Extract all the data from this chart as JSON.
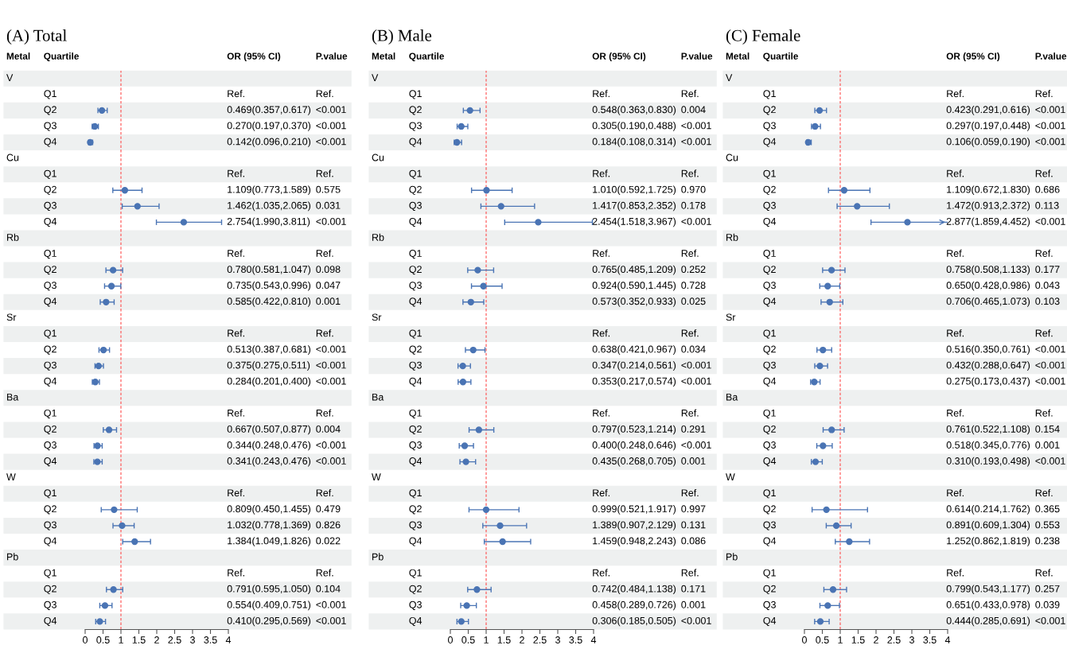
{
  "chart_data": [
    {
      "type": "scatter",
      "orientation": "horizontal",
      "title": "(A) Total",
      "color": "#4a74b4",
      "marker": "circle",
      "grid": false,
      "annotations": [
        "Metal",
        "Quartile",
        "OR (95% CI)",
        "P.value",
        "V",
        "Cu",
        "Rb",
        "Sr",
        "Ba",
        "W",
        "Pb"
      ],
      "categories": [
        null,
        "Q1",
        "Q2",
        "Q3",
        "Q4",
        null,
        "Q1",
        "Q2",
        "Q3",
        "Q4",
        null,
        "Q1",
        "Q2",
        "Q3",
        "Q4",
        null,
        "Q1",
        "Q2",
        "Q3",
        "Q4",
        null,
        "Q1",
        "Q2",
        "Q3",
        "Q4",
        null,
        "Q1",
        "Q2",
        "Q3",
        "Q4",
        null,
        "Q1",
        "Q2",
        "Q3",
        "Q4"
      ],
      "values": [
        null,
        null,
        0.469,
        0.27,
        0.142,
        null,
        null,
        1.109,
        1.462,
        2.754,
        null,
        null,
        0.78,
        0.735,
        0.585,
        null,
        null,
        0.513,
        0.375,
        0.284,
        null,
        null,
        0.667,
        0.344,
        0.341,
        null,
        null,
        0.809,
        1.032,
        1.384,
        null,
        null,
        0.791,
        0.554,
        0.41
      ],
      "errors": [
        null,
        null,
        [
          0.357,
          0.617
        ],
        [
          0.197,
          0.37
        ],
        [
          0.096,
          0.21
        ],
        null,
        null,
        [
          0.773,
          1.589
        ],
        [
          1.035,
          2.065
        ],
        [
          1.99,
          3.811
        ],
        null,
        null,
        [
          0.581,
          1.047
        ],
        [
          0.543,
          0.996
        ],
        [
          0.422,
          0.81
        ],
        null,
        null,
        [
          0.387,
          0.681
        ],
        [
          0.275,
          0.511
        ],
        [
          0.201,
          0.4
        ],
        null,
        null,
        [
          0.507,
          0.877
        ],
        [
          0.248,
          0.476
        ],
        [
          0.243,
          0.476
        ],
        null,
        null,
        [
          0.45,
          1.455
        ],
        [
          0.778,
          1.369
        ],
        [
          1.049,
          1.826
        ],
        null,
        null,
        [
          0.595,
          1.05
        ],
        [
          0.409,
          0.751
        ],
        [
          0.295,
          0.569
        ]
      ],
      "value_labels": [
        null,
        "Ref.",
        "0.469(0.357,0.617)",
        "0.270(0.197,0.370)",
        "0.142(0.096,0.210)",
        null,
        "Ref.",
        "1.109(0.773,1.589)",
        "1.462(1.035,2.065)",
        "2.754(1.990,3.811)",
        null,
        "Ref.",
        "0.780(0.581,1.047)",
        "0.735(0.543,0.996)",
        "0.585(0.422,0.810)",
        null,
        "Ref.",
        "0.513(0.387,0.681)",
        "0.375(0.275,0.511)",
        "0.284(0.201,0.400)",
        null,
        "Ref.",
        "0.667(0.507,0.877)",
        "0.344(0.248,0.476)",
        "0.341(0.243,0.476)",
        null,
        "Ref.",
        "0.809(0.450,1.455)",
        "1.032(0.778,1.369)",
        "1.384(1.049,1.826)",
        null,
        "Ref.",
        "0.791(0.595,1.050)",
        "0.554(0.409,0.751)",
        "0.410(0.295,0.569)"
      ],
      "y2_categories": [
        null,
        "Ref.",
        "<0.001",
        "<0.001",
        "<0.001",
        null,
        "Ref.",
        "0.575",
        "0.031",
        "<0.001",
        null,
        "Ref.",
        "0.098",
        "0.047",
        "0.001",
        null,
        "Ref.",
        "<0.001",
        "<0.001",
        "<0.001",
        null,
        "Ref.",
        "0.004",
        "<0.001",
        "<0.001",
        null,
        "Ref.",
        "0.479",
        "0.826",
        "0.022",
        null,
        "Ref.",
        "0.104",
        "<0.001",
        "<0.001"
      ],
      "xlim": [
        0,
        4
      ],
      "xticks": [
        0,
        0.5,
        1,
        1.5,
        2,
        2.5,
        3,
        3.5,
        4
      ],
      "ref_lines": [
        {
          "axis": "x",
          "value": 1,
          "color": "#ff4d4d",
          "line_style": "dashed"
        }
      ]
    },
    {
      "type": "scatter",
      "orientation": "horizontal",
      "title": "(B) Male",
      "color": "#4a74b4",
      "marker": "circle",
      "grid": false,
      "annotations": [
        "Metal",
        "Quartile",
        "OR (95% CI)",
        "P.value",
        "V",
        "Cu",
        "Rb",
        "Sr",
        "Ba",
        "W",
        "Pb"
      ],
      "categories": [
        null,
        "Q1",
        "Q2",
        "Q3",
        "Q4",
        null,
        "Q1",
        "Q2",
        "Q3",
        "Q4",
        null,
        "Q1",
        "Q2",
        "Q3",
        "Q4",
        null,
        "Q1",
        "Q2",
        "Q3",
        "Q4",
        null,
        "Q1",
        "Q2",
        "Q3",
        "Q4",
        null,
        "Q1",
        "Q2",
        "Q3",
        "Q4",
        null,
        "Q1",
        "Q2",
        "Q3",
        "Q4"
      ],
      "values": [
        null,
        null,
        0.548,
        0.305,
        0.184,
        null,
        null,
        1.01,
        1.417,
        2.454,
        null,
        null,
        0.765,
        0.924,
        0.573,
        null,
        null,
        0.638,
        0.347,
        0.353,
        null,
        null,
        0.797,
        0.4,
        0.435,
        null,
        null,
        0.999,
        1.389,
        1.459,
        null,
        null,
        0.742,
        0.458,
        0.306
      ],
      "errors": [
        null,
        null,
        [
          0.363,
          0.83
        ],
        [
          0.19,
          0.488
        ],
        [
          0.108,
          0.314
        ],
        null,
        null,
        [
          0.592,
          1.725
        ],
        [
          0.853,
          2.352
        ],
        [
          1.518,
          3.967
        ],
        null,
        null,
        [
          0.485,
          1.209
        ],
        [
          0.59,
          1.445
        ],
        [
          0.352,
          0.933
        ],
        null,
        null,
        [
          0.421,
          0.967
        ],
        [
          0.214,
          0.561
        ],
        [
          0.217,
          0.574
        ],
        null,
        null,
        [
          0.523,
          1.214
        ],
        [
          0.248,
          0.646
        ],
        [
          0.268,
          0.705
        ],
        null,
        null,
        [
          0.521,
          1.917
        ],
        [
          0.907,
          2.129
        ],
        [
          0.948,
          2.243
        ],
        null,
        null,
        [
          0.484,
          1.138
        ],
        [
          0.289,
          0.726
        ],
        [
          0.185,
          0.505
        ]
      ],
      "value_labels": [
        null,
        "Ref.",
        "0.548(0.363,0.830)",
        "0.305(0.190,0.488)",
        "0.184(0.108,0.314)",
        null,
        "Ref.",
        "1.010(0.592,1.725)",
        "1.417(0.853,2.352)",
        "2.454(1.518,3.967)",
        null,
        "Ref.",
        "0.765(0.485,1.209)",
        "0.924(0.590,1.445)",
        "0.573(0.352,0.933)",
        null,
        "Ref.",
        "0.638(0.421,0.967)",
        "0.347(0.214,0.561)",
        "0.353(0.217,0.574)",
        null,
        "Ref.",
        "0.797(0.523,1.214)",
        "0.400(0.248,0.646)",
        "0.435(0.268,0.705)",
        null,
        "Ref.",
        "0.999(0.521,1.917)",
        "1.389(0.907,2.129)",
        "1.459(0.948,2.243)",
        null,
        "Ref.",
        "0.742(0.484,1.138)",
        "0.458(0.289,0.726)",
        "0.306(0.185,0.505)"
      ],
      "y2_categories": [
        null,
        "Ref.",
        "0.004",
        "<0.001",
        "<0.001",
        null,
        "Ref.",
        "0.970",
        "0.178",
        "<0.001",
        null,
        "Ref.",
        "0.252",
        "0.728",
        "0.025",
        null,
        "Ref.",
        "0.034",
        "<0.001",
        "<0.001",
        null,
        "Ref.",
        "0.291",
        "<0.001",
        "0.001",
        null,
        "Ref.",
        "0.997",
        "0.131",
        "0.086",
        null,
        "Ref.",
        "0.171",
        "0.001",
        "<0.001"
      ],
      "xlim": [
        0,
        4
      ],
      "xticks": [
        0,
        0.5,
        1,
        1.5,
        2,
        2.5,
        3,
        3.5,
        4
      ],
      "ref_lines": [
        {
          "axis": "x",
          "value": 1,
          "color": "#ff4d4d",
          "line_style": "dashed"
        }
      ]
    },
    {
      "type": "scatter",
      "orientation": "horizontal",
      "title": "(C) Female",
      "color": "#4a74b4",
      "marker": "circle",
      "grid": false,
      "annotations": [
        "Metal",
        "Quartile",
        "OR (95% CI)",
        "P.value",
        "V",
        "Cu",
        "Rb",
        "Sr",
        "Ba",
        "W",
        "Pb"
      ],
      "categories": [
        null,
        "Q1",
        "Q2",
        "Q3",
        "Q4",
        null,
        "Q1",
        "Q2",
        "Q3",
        "Q4",
        null,
        "Q1",
        "Q2",
        "Q3",
        "Q4",
        null,
        "Q1",
        "Q2",
        "Q3",
        "Q4",
        null,
        "Q1",
        "Q2",
        "Q3",
        "Q4",
        null,
        "Q1",
        "Q2",
        "Q3",
        "Q4",
        null,
        "Q1",
        "Q2",
        "Q3",
        "Q4"
      ],
      "values": [
        null,
        null,
        0.423,
        0.297,
        0.106,
        null,
        null,
        1.109,
        1.472,
        2.877,
        null,
        null,
        0.758,
        0.65,
        0.706,
        null,
        null,
        0.516,
        0.432,
        0.275,
        null,
        null,
        0.761,
        0.518,
        0.31,
        null,
        null,
        0.614,
        0.891,
        1.252,
        null,
        null,
        0.799,
        0.651,
        0.444
      ],
      "errors": [
        null,
        null,
        [
          0.291,
          0.616
        ],
        [
          0.197,
          0.448
        ],
        [
          0.059,
          0.19
        ],
        null,
        null,
        [
          0.672,
          1.83
        ],
        [
          0.913,
          2.372
        ],
        [
          1.859,
          4.452
        ],
        null,
        null,
        [
          0.508,
          1.133
        ],
        [
          0.428,
          0.986
        ],
        [
          0.465,
          1.073
        ],
        null,
        null,
        [
          0.35,
          0.761
        ],
        [
          0.288,
          0.647
        ],
        [
          0.173,
          0.437
        ],
        null,
        null,
        [
          0.522,
          1.108
        ],
        [
          0.345,
          0.776
        ],
        [
          0.193,
          0.498
        ],
        null,
        null,
        [
          0.214,
          1.762
        ],
        [
          0.609,
          1.304
        ],
        [
          0.862,
          1.819
        ],
        null,
        null,
        [
          0.543,
          1.177
        ],
        [
          0.433,
          0.978
        ],
        [
          0.285,
          0.691
        ]
      ],
      "value_labels": [
        null,
        "Ref.",
        "0.423(0.291,0.616)",
        "0.297(0.197,0.448)",
        "0.106(0.059,0.190)",
        null,
        "Ref.",
        "1.109(0.672,1.830)",
        "1.472(0.913,2.372)",
        "2.877(1.859,4.452)",
        null,
        "Ref.",
        "0.758(0.508,1.133)",
        "0.650(0.428,0.986)",
        "0.706(0.465,1.073)",
        null,
        "Ref.",
        "0.516(0.350,0.761)",
        "0.432(0.288,0.647)",
        "0.275(0.173,0.437)",
        null,
        "Ref.",
        "0.761(0.522,1.108)",
        "0.518(0.345,0.776)",
        "0.310(0.193,0.498)",
        null,
        "Ref.",
        "0.614(0.214,1.762)",
        "0.891(0.609,1.304)",
        "1.252(0.862,1.819)",
        null,
        "Ref.",
        "0.799(0.543,1.177)",
        "0.651(0.433,0.978)",
        "0.444(0.285,0.691)"
      ],
      "y2_categories": [
        null,
        "Ref.",
        "<0.001",
        "<0.001",
        "<0.001",
        null,
        "Ref.",
        "0.686",
        "0.113",
        "<0.001",
        null,
        "Ref.",
        "0.177",
        "0.043",
        "0.103",
        null,
        "Ref.",
        "<0.001",
        "<0.001",
        "<0.001",
        null,
        "Ref.",
        "0.154",
        "0.001",
        "<0.001",
        null,
        "Ref.",
        "0.365",
        "0.553",
        "0.238",
        null,
        "Ref.",
        "0.257",
        "0.039",
        "<0.001"
      ],
      "xlim": [
        0,
        4
      ],
      "xticks": [
        0,
        0.5,
        1,
        1.5,
        2,
        2.5,
        3,
        3.5,
        4
      ],
      "ref_lines": [
        {
          "axis": "x",
          "value": 1,
          "color": "#ff4d4d",
          "line_style": "dashed"
        }
      ]
    }
  ]
}
